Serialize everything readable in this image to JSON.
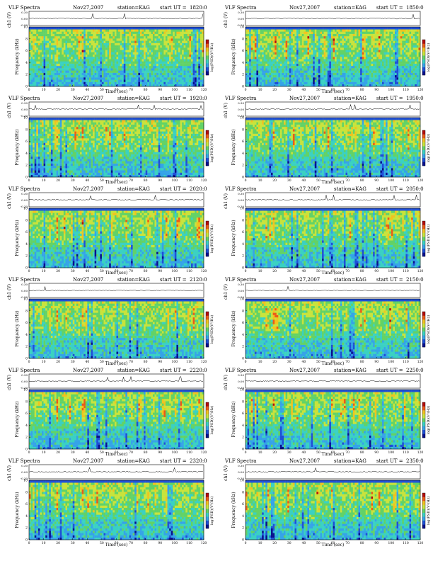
{
  "page": {
    "title": "VLF Spectra sheet",
    "background": "#ffffff"
  },
  "colormap": [
    "#08108c",
    "#1f4fd6",
    "#35a3e8",
    "#3ad1c2",
    "#62d266",
    "#c8e33c",
    "#f1c21f",
    "#ec5a16",
    "#b40d0c"
  ],
  "axes": {
    "xlabel": "Time (sec)",
    "ylabel_spec": "Frequency (kHz)",
    "ylabel_ch": "ch1 (V)",
    "colorbar_label": "log(PSD)(V²/Hz)",
    "xticks": [
      "0",
      "10",
      "20",
      "30",
      "40",
      "50",
      "60",
      "70",
      "80",
      "90",
      "100",
      "110",
      "120"
    ],
    "yticks": [
      "0",
      "2",
      "4",
      "6",
      "8",
      "10"
    ],
    "ch_ticks": [
      "0.30",
      "0.00",
      "-0.30"
    ]
  },
  "chart_data": [
    {
      "type": "heatmap",
      "title": "VLF Spectra",
      "date": "Nov27,2007",
      "station": "station=KAG",
      "ut_label": "start UT =",
      "start_ut": "1820:0",
      "xlim": [
        0,
        120
      ],
      "ylim": [
        0,
        10
      ],
      "xlabel": "Time (sec)",
      "ylabel": "Frequency (kHz)",
      "colorbar": "log(PSD)(V²/Hz)"
    },
    {
      "type": "heatmap",
      "title": "VLF Spectra",
      "date": "Nov27,2007",
      "station": "station=KAG",
      "ut_label": "start UT =",
      "start_ut": "1850:0",
      "xlim": [
        0,
        120
      ],
      "ylim": [
        0,
        10
      ],
      "xlabel": "Time (sec)",
      "ylabel": "Frequency (kHz)",
      "colorbar": "log(PSD)(V²/Hz)"
    },
    {
      "type": "heatmap",
      "title": "VLF Spectra",
      "date": "Nov27,2007",
      "station": "station=KAG",
      "ut_label": "start UT =",
      "start_ut": "1920:0",
      "xlim": [
        0,
        120
      ],
      "ylim": [
        0,
        10
      ],
      "xlabel": "Time (sec)",
      "ylabel": "Frequency (kHz)",
      "colorbar": "log(PSD)(V²/Hz)"
    },
    {
      "type": "heatmap",
      "title": "VLF Spectra",
      "date": "Nov27,2007",
      "station": "station=KAG",
      "ut_label": "start UT =",
      "start_ut": "1950:0",
      "xlim": [
        0,
        120
      ],
      "ylim": [
        0,
        10
      ],
      "xlabel": "Time (sec)",
      "ylabel": "Frequency (kHz)",
      "colorbar": "log(PSD)(V²/Hz)"
    },
    {
      "type": "heatmap",
      "title": "VLF Spectra",
      "date": "Nov27,2007",
      "station": "station=KAG",
      "ut_label": "start UT =",
      "start_ut": "2020:0",
      "xlim": [
        0,
        120
      ],
      "ylim": [
        0,
        10
      ],
      "xlabel": "Time (sec)",
      "ylabel": "Frequency (kHz)",
      "colorbar": "log(PSD)(V²/Hz)"
    },
    {
      "type": "heatmap",
      "title": "VLF Spectra",
      "date": "Nov27,2007",
      "station": "station=KAG",
      "ut_label": "start UT =",
      "start_ut": "2050:0",
      "xlim": [
        0,
        120
      ],
      "ylim": [
        0,
        10
      ],
      "xlabel": "Time (sec)",
      "ylabel": "Frequency (kHz)",
      "colorbar": "log(PSD)(V²/Hz)"
    },
    {
      "type": "heatmap",
      "title": "VLF Spectra",
      "date": "Nov27,2007",
      "station": "station=KAG",
      "ut_label": "start UT =",
      "start_ut": "2120:0",
      "xlim": [
        0,
        120
      ],
      "ylim": [
        0,
        10
      ],
      "xlabel": "Time (sec)",
      "ylabel": "Frequency (kHz)",
      "colorbar": "log(PSD)(V²/Hz)"
    },
    {
      "type": "heatmap",
      "title": "VLF Spectra",
      "date": "Nov27,2007",
      "station": "station=KAG",
      "ut_label": "start UT =",
      "start_ut": "2150:0",
      "xlim": [
        0,
        120
      ],
      "ylim": [
        0,
        10
      ],
      "xlabel": "Time (sec)",
      "ylabel": "Frequency (kHz)",
      "colorbar": "log(PSD)(V²/Hz)"
    },
    {
      "type": "heatmap",
      "title": "VLF Spectra",
      "date": "Nov27,2007",
      "station": "station=KAG",
      "ut_label": "start UT =",
      "start_ut": "2220:0",
      "xlim": [
        0,
        120
      ],
      "ylim": [
        0,
        10
      ],
      "xlabel": "Time (sec)",
      "ylabel": "Frequency (kHz)",
      "colorbar": "log(PSD)(V²/Hz)"
    },
    {
      "type": "heatmap",
      "title": "VLF Spectra",
      "date": "Nov27,2007",
      "station": "station=KAG",
      "ut_label": "start UT =",
      "start_ut": "2250:0",
      "xlim": [
        0,
        120
      ],
      "ylim": [
        0,
        10
      ],
      "xlabel": "Time (sec)",
      "ylabel": "Frequency (kHz)",
      "colorbar": "log(PSD)(V²/Hz)"
    },
    {
      "type": "heatmap",
      "title": "VLF Spectra",
      "date": "Nov27,2007",
      "station": "station=KAG",
      "ut_label": "start UT =",
      "start_ut": "2320:0",
      "xlim": [
        0,
        120
      ],
      "ylim": [
        0,
        10
      ],
      "xlabel": "Time (sec)",
      "ylabel": "Frequency (kHz)",
      "colorbar": "log(PSD)(V²/Hz)"
    },
    {
      "type": "heatmap",
      "title": "VLF Spectra",
      "date": "Nov27,2007",
      "station": "station=KAG",
      "ut_label": "start UT =",
      "start_ut": "2350:0",
      "xlim": [
        0,
        120
      ],
      "ylim": [
        0,
        10
      ],
      "xlabel": "Time (sec)",
      "ylabel": "Frequency (kHz)",
      "colorbar": "log(PSD)(V²/Hz)"
    }
  ]
}
